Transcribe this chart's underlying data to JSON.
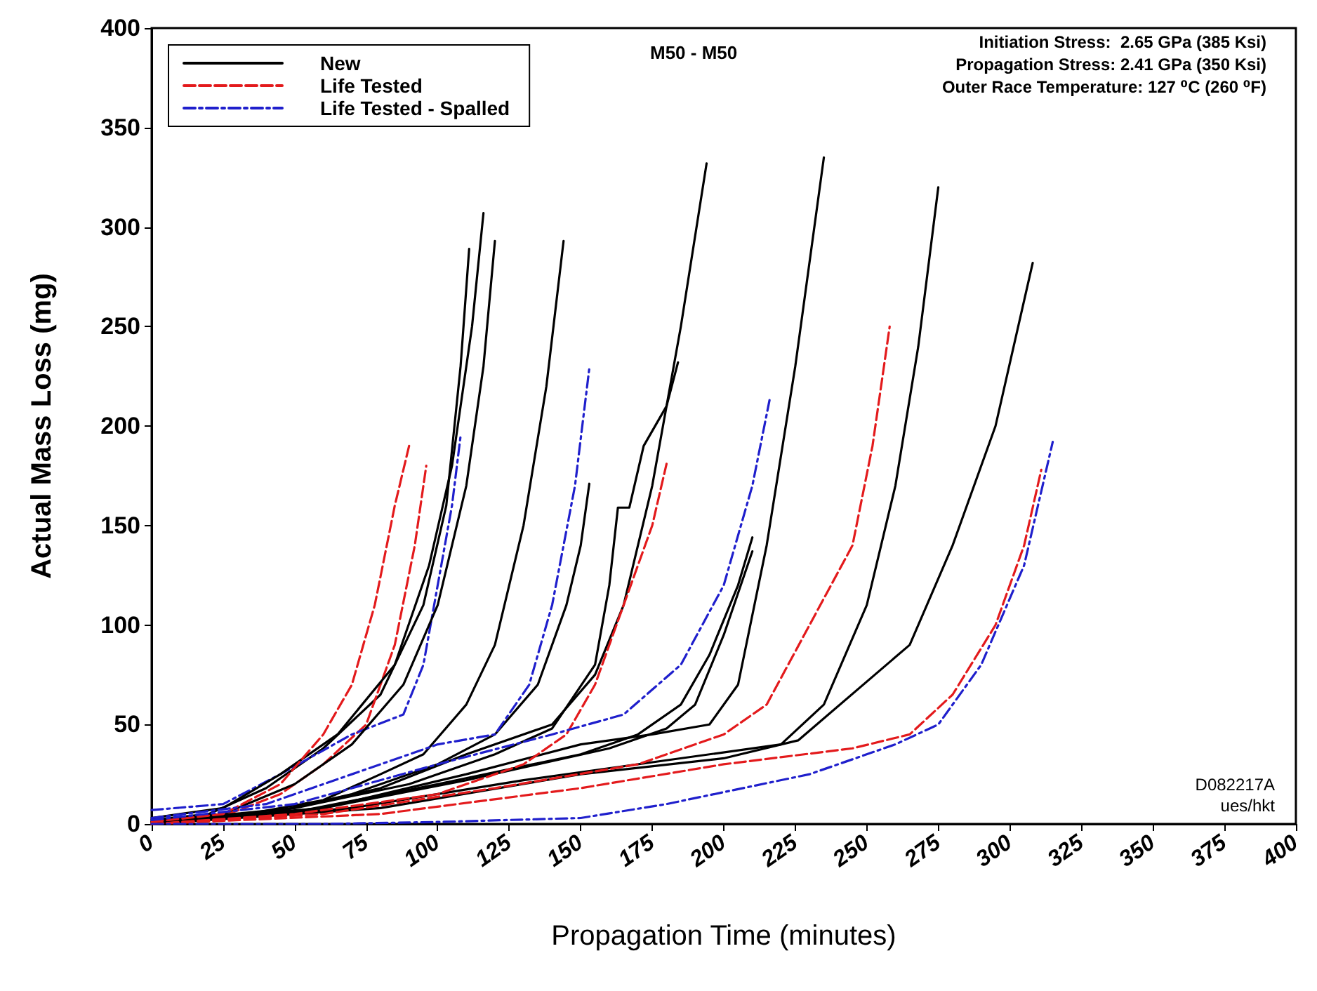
{
  "chart_data": {
    "type": "line",
    "title": "M50 - M50",
    "xlabel": "Propagation Time (minutes)",
    "ylabel": "Actual Mass Loss (mg)",
    "xlim": [
      0,
      400
    ],
    "xticks": [
      0,
      25,
      50,
      75,
      100,
      125,
      150,
      175,
      200,
      225,
      250,
      275,
      300,
      325,
      350,
      375,
      400
    ],
    "ylim": [
      0,
      400
    ],
    "yticks": [
      0,
      50,
      100,
      150,
      200,
      250,
      300,
      350,
      400
    ],
    "grid": false,
    "legend": "top left",
    "annotations": [
      "Initiation Stress:  2.65 GPa (385 Ksi)",
      "Propagation Stress: 2.41 GPa (350 Ksi)",
      "Outer Race Temperature: 127 ⁰C (260 ⁰F)",
      "D082217A",
      "ues/hkt"
    ],
    "series": [
      {
        "name": "New",
        "color": "#000000",
        "line_style": "solid",
        "x": [
          0,
          20,
          40,
          60,
          80,
          95,
          103,
          108,
          111
        ],
        "values": [
          2,
          5,
          18,
          38,
          65,
          110,
          160,
          230,
          289
        ]
      },
      {
        "name": "Life Tested",
        "color": "#e31a1c",
        "line_style": "dashed",
        "x": [
          0,
          25,
          45,
          60,
          75,
          85,
          92,
          96
        ],
        "values": [
          0,
          4,
          15,
          30,
          50,
          90,
          140,
          180
        ]
      },
      {
        "name": "Life Tested - Spalled",
        "color": "#1f1fcc",
        "line_style": "dashdot",
        "x": [
          0,
          25,
          45,
          70,
          88,
          95,
          100,
          105,
          108
        ],
        "values": [
          7,
          10,
          25,
          45,
          55,
          80,
          120,
          160,
          195
        ]
      },
      {
        "color": "#000000",
        "line_style": "solid",
        "x": [
          0,
          25,
          45,
          65,
          85,
          97,
          105,
          112,
          116
        ],
        "values": [
          3,
          8,
          25,
          45,
          80,
          130,
          180,
          250,
          307
        ]
      },
      {
        "color": "#000000",
        "line_style": "solid",
        "x": [
          0,
          25,
          50,
          70,
          88,
          100,
          110,
          116,
          120
        ],
        "values": [
          2,
          5,
          20,
          40,
          70,
          110,
          170,
          230,
          293
        ]
      },
      {
        "color": "#000000",
        "line_style": "solid",
        "x": [
          0,
          30,
          60,
          80,
          95,
          110,
          120,
          130,
          138,
          144
        ],
        "values": [
          1,
          4,
          12,
          25,
          35,
          60,
          90,
          150,
          220,
          293
        ]
      },
      {
        "color": "#000000",
        "line_style": "solid",
        "x": [
          0,
          40,
          70,
          100,
          120,
          135,
          145,
          150,
          153
        ],
        "values": [
          1,
          5,
          15,
          30,
          45,
          70,
          110,
          140,
          171
        ]
      },
      {
        "color": "#000000",
        "line_style": "solid",
        "x": [
          0,
          40,
          80,
          110,
          140,
          155,
          165,
          175,
          185,
          194
        ],
        "values": [
          1,
          5,
          18,
          35,
          50,
          75,
          110,
          170,
          250,
          332
        ]
      },
      {
        "color": "#000000",
        "line_style": "solid",
        "x": [
          0,
          50,
          90,
          120,
          140,
          155,
          160,
          163,
          167,
          172,
          180,
          184
        ],
        "values": [
          1,
          8,
          20,
          35,
          48,
          80,
          120,
          159,
          159,
          190,
          210,
          232
        ]
      },
      {
        "color": "#000000",
        "line_style": "solid",
        "x": [
          0,
          50,
          100,
          150,
          170,
          185,
          195,
          205,
          210
        ],
        "values": [
          1,
          6,
          20,
          35,
          45,
          60,
          85,
          120,
          144
        ]
      },
      {
        "color": "#000000",
        "line_style": "solid",
        "x": [
          0,
          60,
          110,
          160,
          180,
          190,
          200,
          210
        ],
        "values": [
          1,
          8,
          22,
          38,
          48,
          60,
          95,
          137
        ]
      },
      {
        "color": "#000000",
        "line_style": "solid",
        "x": [
          0,
          60,
          110,
          150,
          175,
          195,
          205,
          215,
          225,
          235
        ],
        "values": [
          0,
          8,
          25,
          40,
          45,
          50,
          70,
          140,
          230,
          335
        ]
      },
      {
        "color": "#000000",
        "line_style": "solid",
        "x": [
          0,
          70,
          130,
          180,
          220,
          235,
          250,
          260,
          268,
          275
        ],
        "values": [
          0,
          8,
          22,
          32,
          40,
          60,
          110,
          170,
          240,
          320
        ]
      },
      {
        "color": "#000000",
        "line_style": "solid",
        "x": [
          0,
          80,
          150,
          200,
          226,
          265,
          280,
          295,
          308
        ],
        "values": [
          0,
          8,
          25,
          33,
          42,
          90,
          140,
          200,
          282
        ]
      },
      {
        "color": "#e31a1c",
        "line_style": "dashed",
        "x": [
          0,
          25,
          45,
          60,
          70,
          78,
          85,
          90
        ],
        "values": [
          1,
          5,
          20,
          45,
          70,
          110,
          160,
          190
        ]
      },
      {
        "color": "#e31a1c",
        "line_style": "dashed",
        "x": [
          0,
          50,
          100,
          130,
          145,
          155,
          165,
          175,
          180
        ],
        "values": [
          0,
          5,
          15,
          30,
          45,
          70,
          110,
          150,
          181
        ]
      },
      {
        "color": "#e31a1c",
        "line_style": "dashed",
        "x": [
          0,
          60,
          120,
          170,
          200,
          215,
          230,
          245,
          252,
          258
        ],
        "values": [
          0,
          5,
          18,
          30,
          45,
          60,
          100,
          140,
          190,
          250
        ]
      },
      {
        "color": "#e31a1c",
        "line_style": "dashed",
        "x": [
          0,
          80,
          150,
          200,
          245,
          265,
          280,
          295,
          305,
          311
        ],
        "values": [
          0,
          5,
          18,
          30,
          38,
          45,
          65,
          100,
          140,
          178
        ]
      },
      {
        "color": "#1f1fcc",
        "line_style": "dashdot",
        "x": [
          0,
          40,
          70,
          100,
          120,
          132,
          140,
          148,
          153
        ],
        "values": [
          3,
          10,
          25,
          40,
          45,
          70,
          110,
          170,
          229
        ]
      },
      {
        "color": "#1f1fcc",
        "line_style": "dashdot",
        "x": [
          0,
          50,
          100,
          140,
          165,
          185,
          200,
          210,
          216
        ],
        "values": [
          2,
          10,
          30,
          45,
          55,
          80,
          120,
          170,
          213
        ]
      },
      {
        "color": "#1f1fcc",
        "line_style": "dashdot",
        "x": [
          0,
          60,
          100,
          150,
          180,
          230,
          260,
          275,
          290,
          305,
          315
        ],
        "values": [
          0,
          0,
          1,
          3,
          10,
          25,
          40,
          50,
          80,
          130,
          192
        ]
      }
    ]
  }
}
